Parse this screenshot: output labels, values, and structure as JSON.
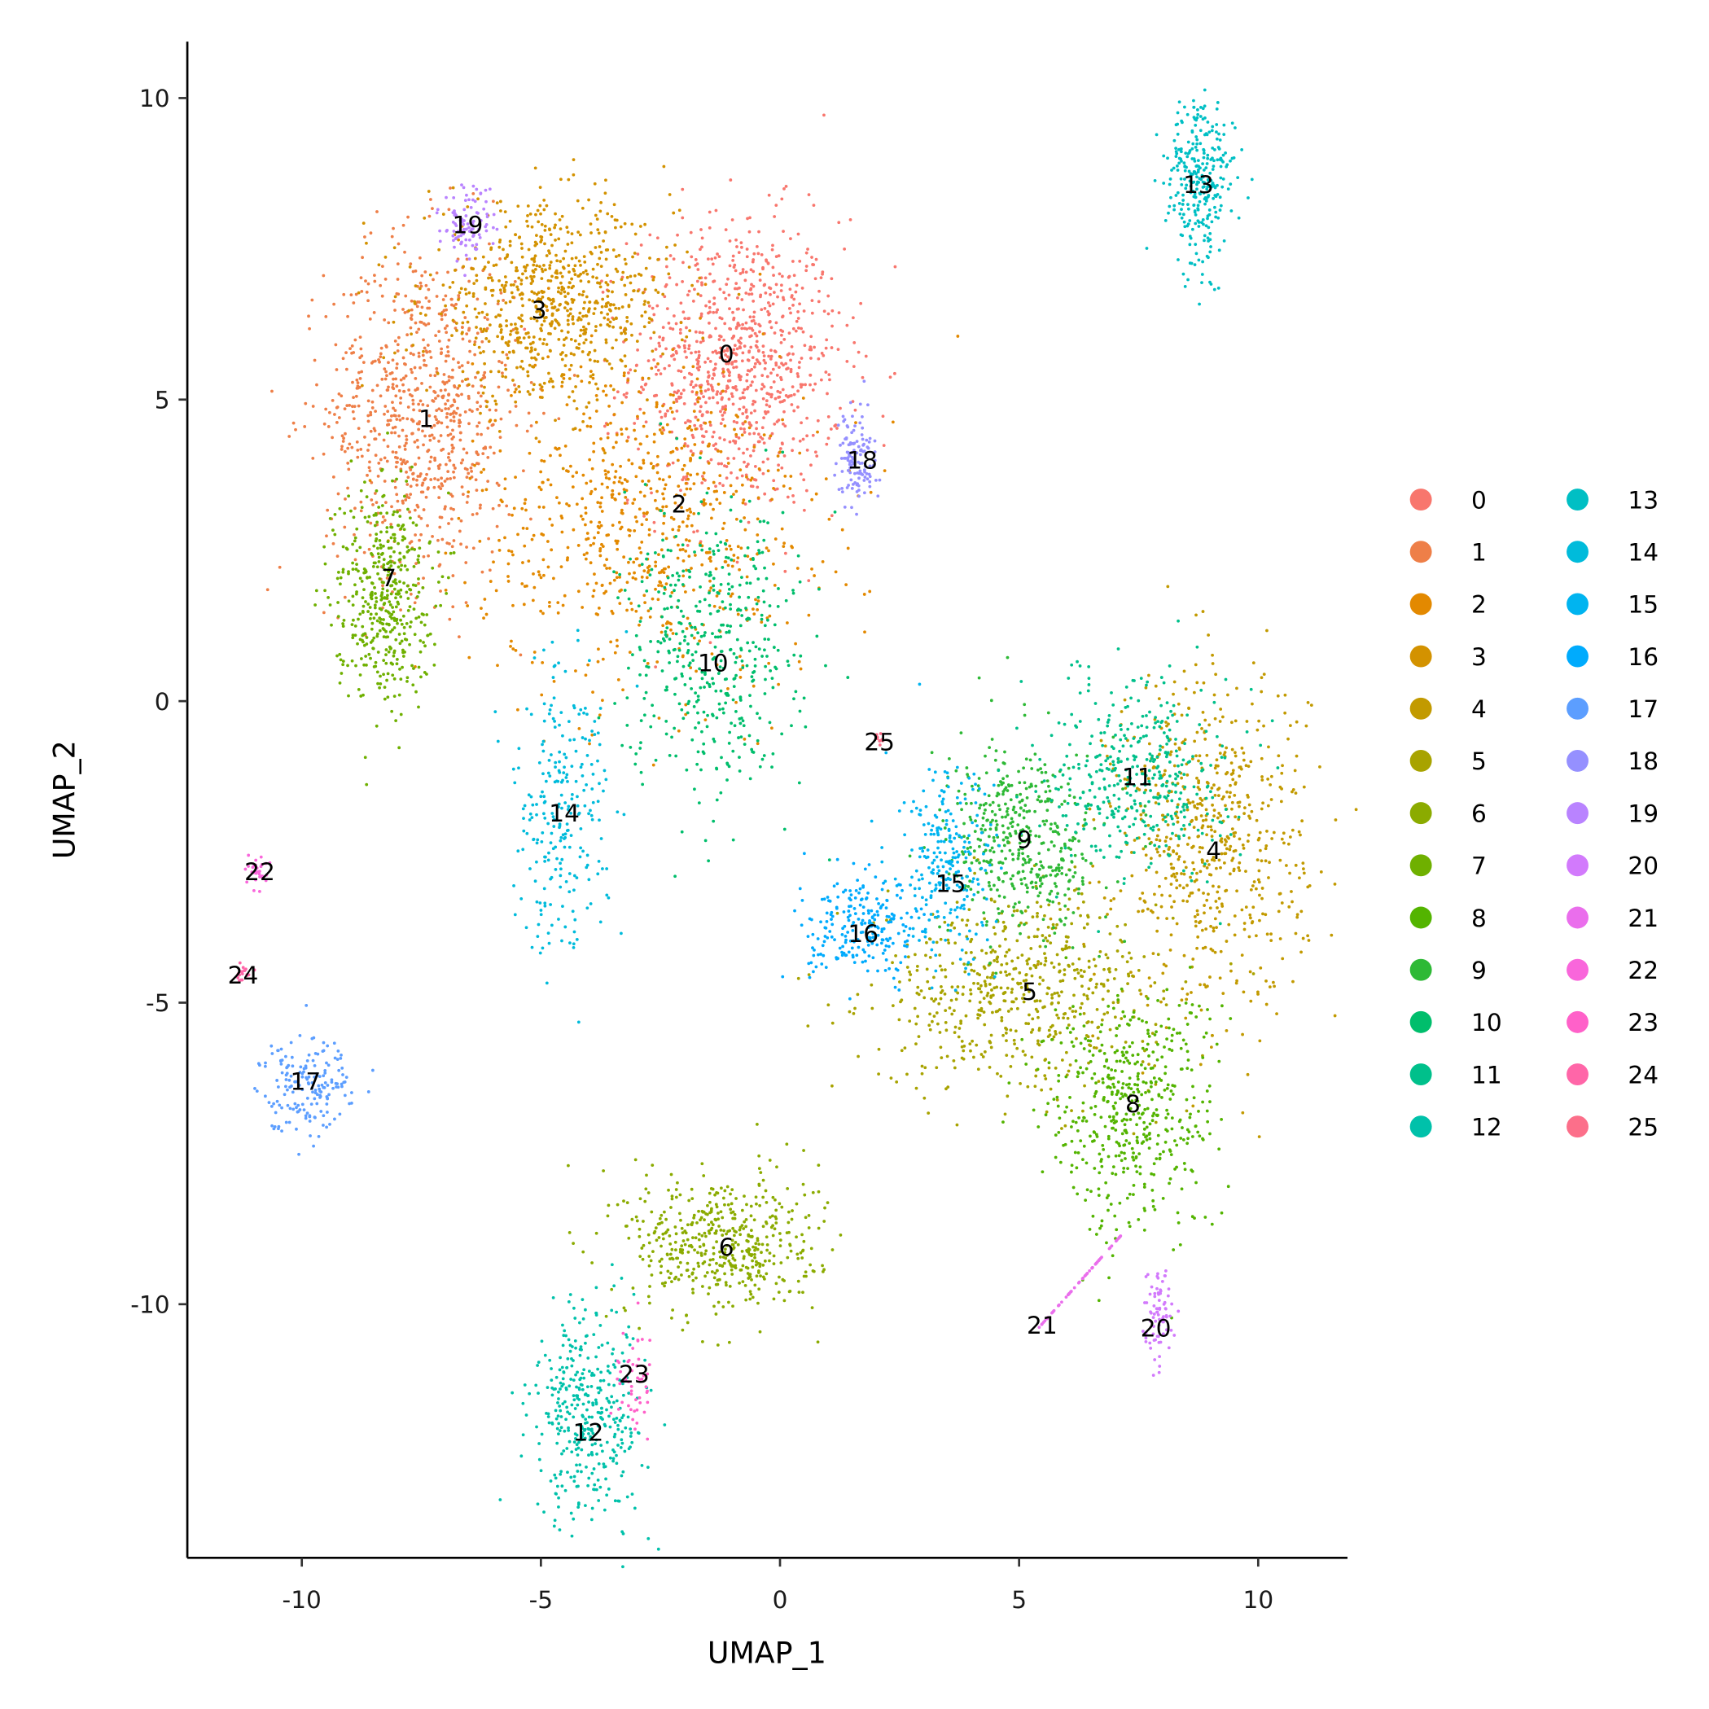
{
  "chart_data": {
    "type": "scatter",
    "title": "",
    "xlabel": "UMAP_1",
    "ylabel": "UMAP_2",
    "xlim": [
      -12.4,
      11.9
    ],
    "ylim": [
      -14.2,
      10.9
    ],
    "xticks": [
      -10,
      -5,
      0,
      5,
      10
    ],
    "yticks": [
      -10,
      -5,
      0,
      5,
      10
    ],
    "xtick_labels": [
      "-10",
      "-5",
      "0",
      "5",
      "10"
    ],
    "ytick_labels": [
      "-10",
      "-5",
      "0",
      "5",
      "10"
    ],
    "grid": false,
    "legend_placement": "right",
    "clusters": [
      {
        "id": "0",
        "color": "#F8766D",
        "label_pos": [
          -1.12,
          5.76
        ],
        "center": [
          -0.9,
          5.6
        ],
        "spread": [
          1.1,
          1.2
        ],
        "n": 900
      },
      {
        "id": "1",
        "color": "#EE7F48",
        "label_pos": [
          -7.4,
          4.69
        ],
        "center": [
          -7.5,
          4.8
        ],
        "spread": [
          1.0,
          1.4
        ],
        "n": 800
      },
      {
        "id": "2",
        "color": "#E38900",
        "label_pos": [
          -2.11,
          3.27
        ],
        "center": [
          -2.8,
          3.0
        ],
        "spread": [
          1.8,
          1.4
        ],
        "n": 750
      },
      {
        "id": "3",
        "color": "#D39200",
        "label_pos": [
          -5.04,
          6.49
        ],
        "center": [
          -4.8,
          6.6
        ],
        "spread": [
          1.3,
          0.8
        ],
        "n": 750
      },
      {
        "id": "4",
        "color": "#C29A00",
        "label_pos": [
          9.07,
          -2.47
        ],
        "center": [
          9.0,
          -2.3
        ],
        "spread": [
          1.0,
          1.4
        ],
        "n": 650
      },
      {
        "id": "5",
        "color": "#A8A300",
        "label_pos": [
          5.22,
          -4.81
        ],
        "center": [
          5.0,
          -4.8
        ],
        "spread": [
          1.5,
          0.8
        ],
        "n": 600
      },
      {
        "id": "6",
        "color": "#8BAB00",
        "label_pos": [
          -1.12,
          -9.05
        ],
        "center": [
          -1.2,
          -9.0
        ],
        "spread": [
          1.0,
          0.6
        ],
        "n": 500
      },
      {
        "id": "7",
        "color": "#6FB000",
        "label_pos": [
          -8.18,
          2.05
        ],
        "center": [
          -8.3,
          1.8
        ],
        "spread": [
          0.5,
          0.9
        ],
        "n": 450
      },
      {
        "id": "8",
        "color": "#53B400",
        "label_pos": [
          7.38,
          -6.67
        ],
        "center": [
          7.3,
          -6.8
        ],
        "spread": [
          0.9,
          1.0
        ],
        "n": 500
      },
      {
        "id": "9",
        "color": "#2EB936",
        "label_pos": [
          5.11,
          -2.29
        ],
        "center": [
          5.1,
          -2.3
        ],
        "spread": [
          0.8,
          0.8
        ],
        "n": 450
      },
      {
        "id": "10",
        "color": "#00BE6C",
        "label_pos": [
          -1.4,
          0.64
        ],
        "center": [
          -1.4,
          0.8
        ],
        "spread": [
          0.9,
          1.2
        ],
        "n": 450
      },
      {
        "id": "11",
        "color": "#00C08B",
        "label_pos": [
          7.47,
          -1.25
        ],
        "center": [
          7.5,
          -1.2
        ],
        "spread": [
          0.9,
          0.8
        ],
        "n": 400
      },
      {
        "id": "12",
        "color": "#00C1AA",
        "label_pos": [
          -4.01,
          -12.12
        ],
        "center": [
          -4.0,
          -11.8
        ],
        "spread": [
          0.6,
          0.9
        ],
        "n": 380
      },
      {
        "id": "13",
        "color": "#00BFC4",
        "label_pos": [
          8.75,
          8.57
        ],
        "center": [
          8.8,
          8.6
        ],
        "spread": [
          0.35,
          0.7
        ],
        "n": 300
      },
      {
        "id": "14",
        "color": "#00BBDB",
        "label_pos": [
          -4.51,
          -1.85
        ],
        "center": [
          -4.6,
          -1.8
        ],
        "spread": [
          0.5,
          1.2
        ],
        "n": 250
      },
      {
        "id": "15",
        "color": "#00B4F0",
        "label_pos": [
          3.57,
          -3.02
        ],
        "center": [
          3.5,
          -2.8
        ],
        "spread": [
          0.5,
          0.8
        ],
        "n": 250
      },
      {
        "id": "16",
        "color": "#00ABFD",
        "label_pos": [
          1.74,
          -3.85
        ],
        "center": [
          1.8,
          -3.8
        ],
        "spread": [
          0.6,
          0.4
        ],
        "n": 230
      },
      {
        "id": "17",
        "color": "#5C9EFF",
        "label_pos": [
          -9.92,
          -6.3
        ],
        "center": [
          -9.9,
          -6.3
        ],
        "spread": [
          0.5,
          0.4
        ],
        "n": 180
      },
      {
        "id": "18",
        "color": "#9590FF",
        "label_pos": [
          1.72,
          4.0
        ],
        "center": [
          1.6,
          4.0
        ],
        "spread": [
          0.2,
          0.4
        ],
        "n": 120
      },
      {
        "id": "19",
        "color": "#B983FF",
        "label_pos": [
          -6.53,
          7.9
        ],
        "center": [
          -6.5,
          7.9
        ],
        "spread": [
          0.3,
          0.3
        ],
        "n": 100
      },
      {
        "id": "20",
        "color": "#D27AFC",
        "label_pos": [
          7.86,
          -10.39
        ],
        "center": [
          7.9,
          -10.2
        ],
        "spread": [
          0.15,
          0.4
        ],
        "n": 80
      },
      {
        "id": "21",
        "color": "#EA6EEC",
        "label_pos": [
          5.48,
          -10.34
        ],
        "center": [
          6.3,
          -9.6
        ],
        "spread": [
          0.6,
          0.6
        ],
        "n": 60
      },
      {
        "id": "22",
        "color": "#F966DB",
        "label_pos": [
          -10.88,
          -2.82
        ],
        "center": [
          -10.9,
          -2.8
        ],
        "spread": [
          0.1,
          0.15
        ],
        "n": 30
      },
      {
        "id": "23",
        "color": "#FF61C9",
        "label_pos": [
          -3.05,
          -11.15
        ],
        "center": [
          -3.1,
          -11.3
        ],
        "spread": [
          0.2,
          0.5
        ],
        "n": 50
      },
      {
        "id": "24",
        "color": "#FF66A8",
        "label_pos": [
          -11.23,
          -4.54
        ],
        "center": [
          -11.2,
          -4.5
        ],
        "spread": [
          0.1,
          0.1
        ],
        "n": 20
      },
      {
        "id": "25",
        "color": "#FC6F8A",
        "label_pos": [
          2.08,
          -0.67
        ],
        "center": [
          2.1,
          -0.6
        ],
        "spread": [
          0.05,
          0.05
        ],
        "n": 10
      }
    ]
  }
}
